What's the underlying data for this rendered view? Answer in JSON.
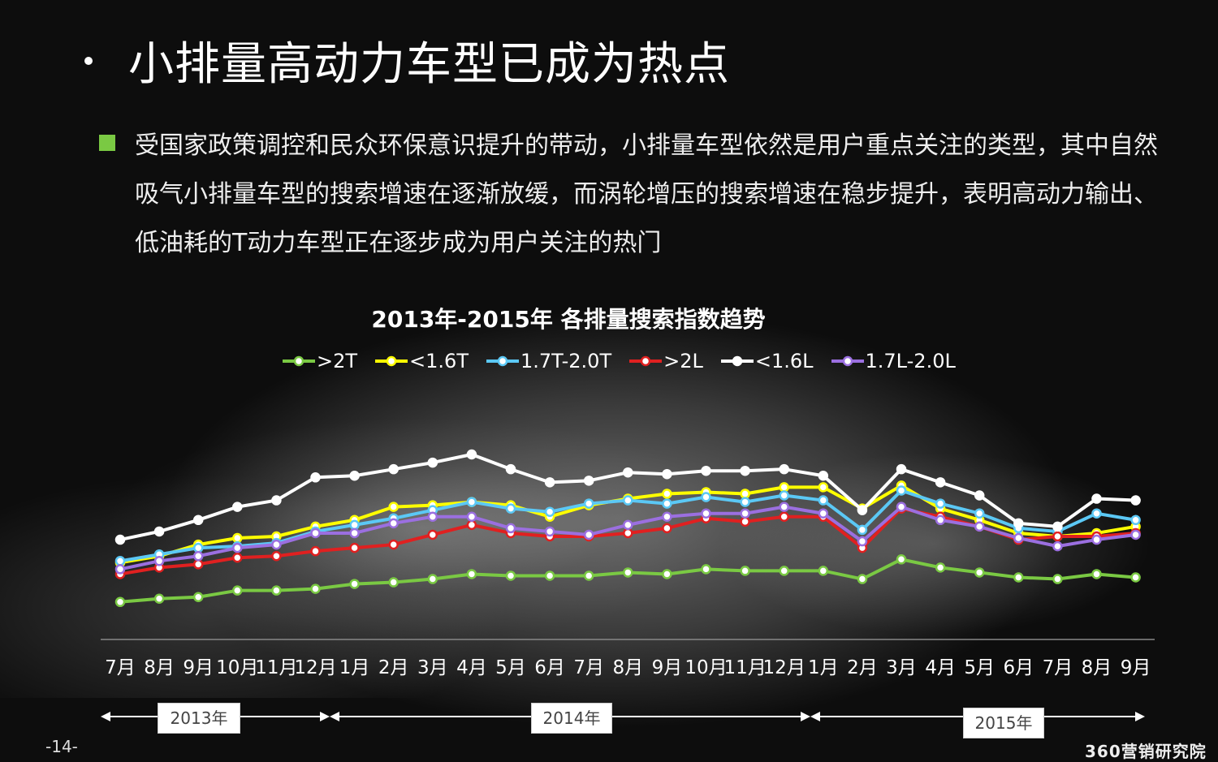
{
  "slide": {
    "title": "小排量高动力车型已成为热点",
    "body": "受国家政策调控和民众环保意识提升的带动，小排量车型依然是用户重点关注的类型，其中自然吸气小排量车型的搜索增速在逐渐放缓，而涡轮增压的搜索增速在稳步提升，表明高动力输出、低油耗的T动力车型正在逐步成为用户关注的热门",
    "page_number": "-14-",
    "brand": "360营销研究院"
  },
  "chart_data": {
    "type": "line",
    "title": "2013年-2015年  各排量搜索指数趋势",
    "legend_position": "top",
    "x": [
      "7月",
      "8月",
      "9月",
      "10月",
      "11月",
      "12月",
      "1月",
      "2月",
      "3月",
      "4月",
      "5月",
      "6月",
      "7月",
      "8月",
      "9月",
      "10月",
      "11月",
      "12月",
      "1月",
      "2月",
      "3月",
      "4月",
      "5月",
      "6月",
      "7月",
      "8月",
      "9月"
    ],
    "years": [
      {
        "label": "2013年",
        "start": 0,
        "end": 5
      },
      {
        "label": "2014年",
        "start": 6,
        "end": 17
      },
      {
        "label": "2015年",
        "start": 18,
        "end": 26
      }
    ],
    "ylim": [
      0,
      100
    ],
    "series": [
      {
        "name": ">2T",
        "color": "#7ac943",
        "values": [
          10,
          12,
          13,
          17,
          17,
          18,
          21,
          22,
          24,
          27,
          26,
          26,
          26,
          28,
          27,
          30,
          29,
          29,
          29,
          24,
          36,
          31,
          28,
          25,
          24,
          27,
          25
        ]
      },
      {
        "name": "<1.6T",
        "color": "#ffff00",
        "values": [
          34,
          38,
          45,
          49,
          50,
          56,
          60,
          68,
          69,
          71,
          69,
          62,
          69,
          73,
          76,
          77,
          76,
          80,
          80,
          67,
          81,
          67,
          60,
          52,
          50,
          52,
          56
        ]
      },
      {
        "name": "1.7T-2.0T",
        "color": "#5bc8f5",
        "values": [
          35,
          39,
          43,
          44,
          46,
          53,
          57,
          61,
          66,
          71,
          67,
          65,
          70,
          72,
          70,
          74,
          71,
          75,
          72,
          54,
          78,
          70,
          64,
          55,
          53,
          64,
          60
        ]
      },
      {
        "name": ">2L",
        "color": "#e02020",
        "values": [
          27,
          31,
          33,
          37,
          38,
          41,
          43,
          45,
          51,
          57,
          52,
          50,
          50,
          52,
          55,
          61,
          59,
          62,
          62,
          43,
          67,
          62,
          56,
          48,
          50,
          50,
          52
        ]
      },
      {
        "name": "<1.6L",
        "color": "#ffffff",
        "values": [
          48,
          53,
          60,
          68,
          72,
          86,
          87,
          91,
          95,
          100,
          91,
          83,
          84,
          89,
          88,
          90,
          90,
          91,
          87,
          66,
          91,
          83,
          75,
          58,
          56,
          73,
          72
        ]
      },
      {
        "name": "1.7L-2.0L",
        "color": "#9b6fe0",
        "values": [
          30,
          35,
          38,
          43,
          45,
          52,
          52,
          58,
          62,
          62,
          55,
          53,
          51,
          57,
          62,
          64,
          64,
          68,
          64,
          47,
          68,
          60,
          56,
          49,
          44,
          48,
          51
        ]
      }
    ]
  }
}
